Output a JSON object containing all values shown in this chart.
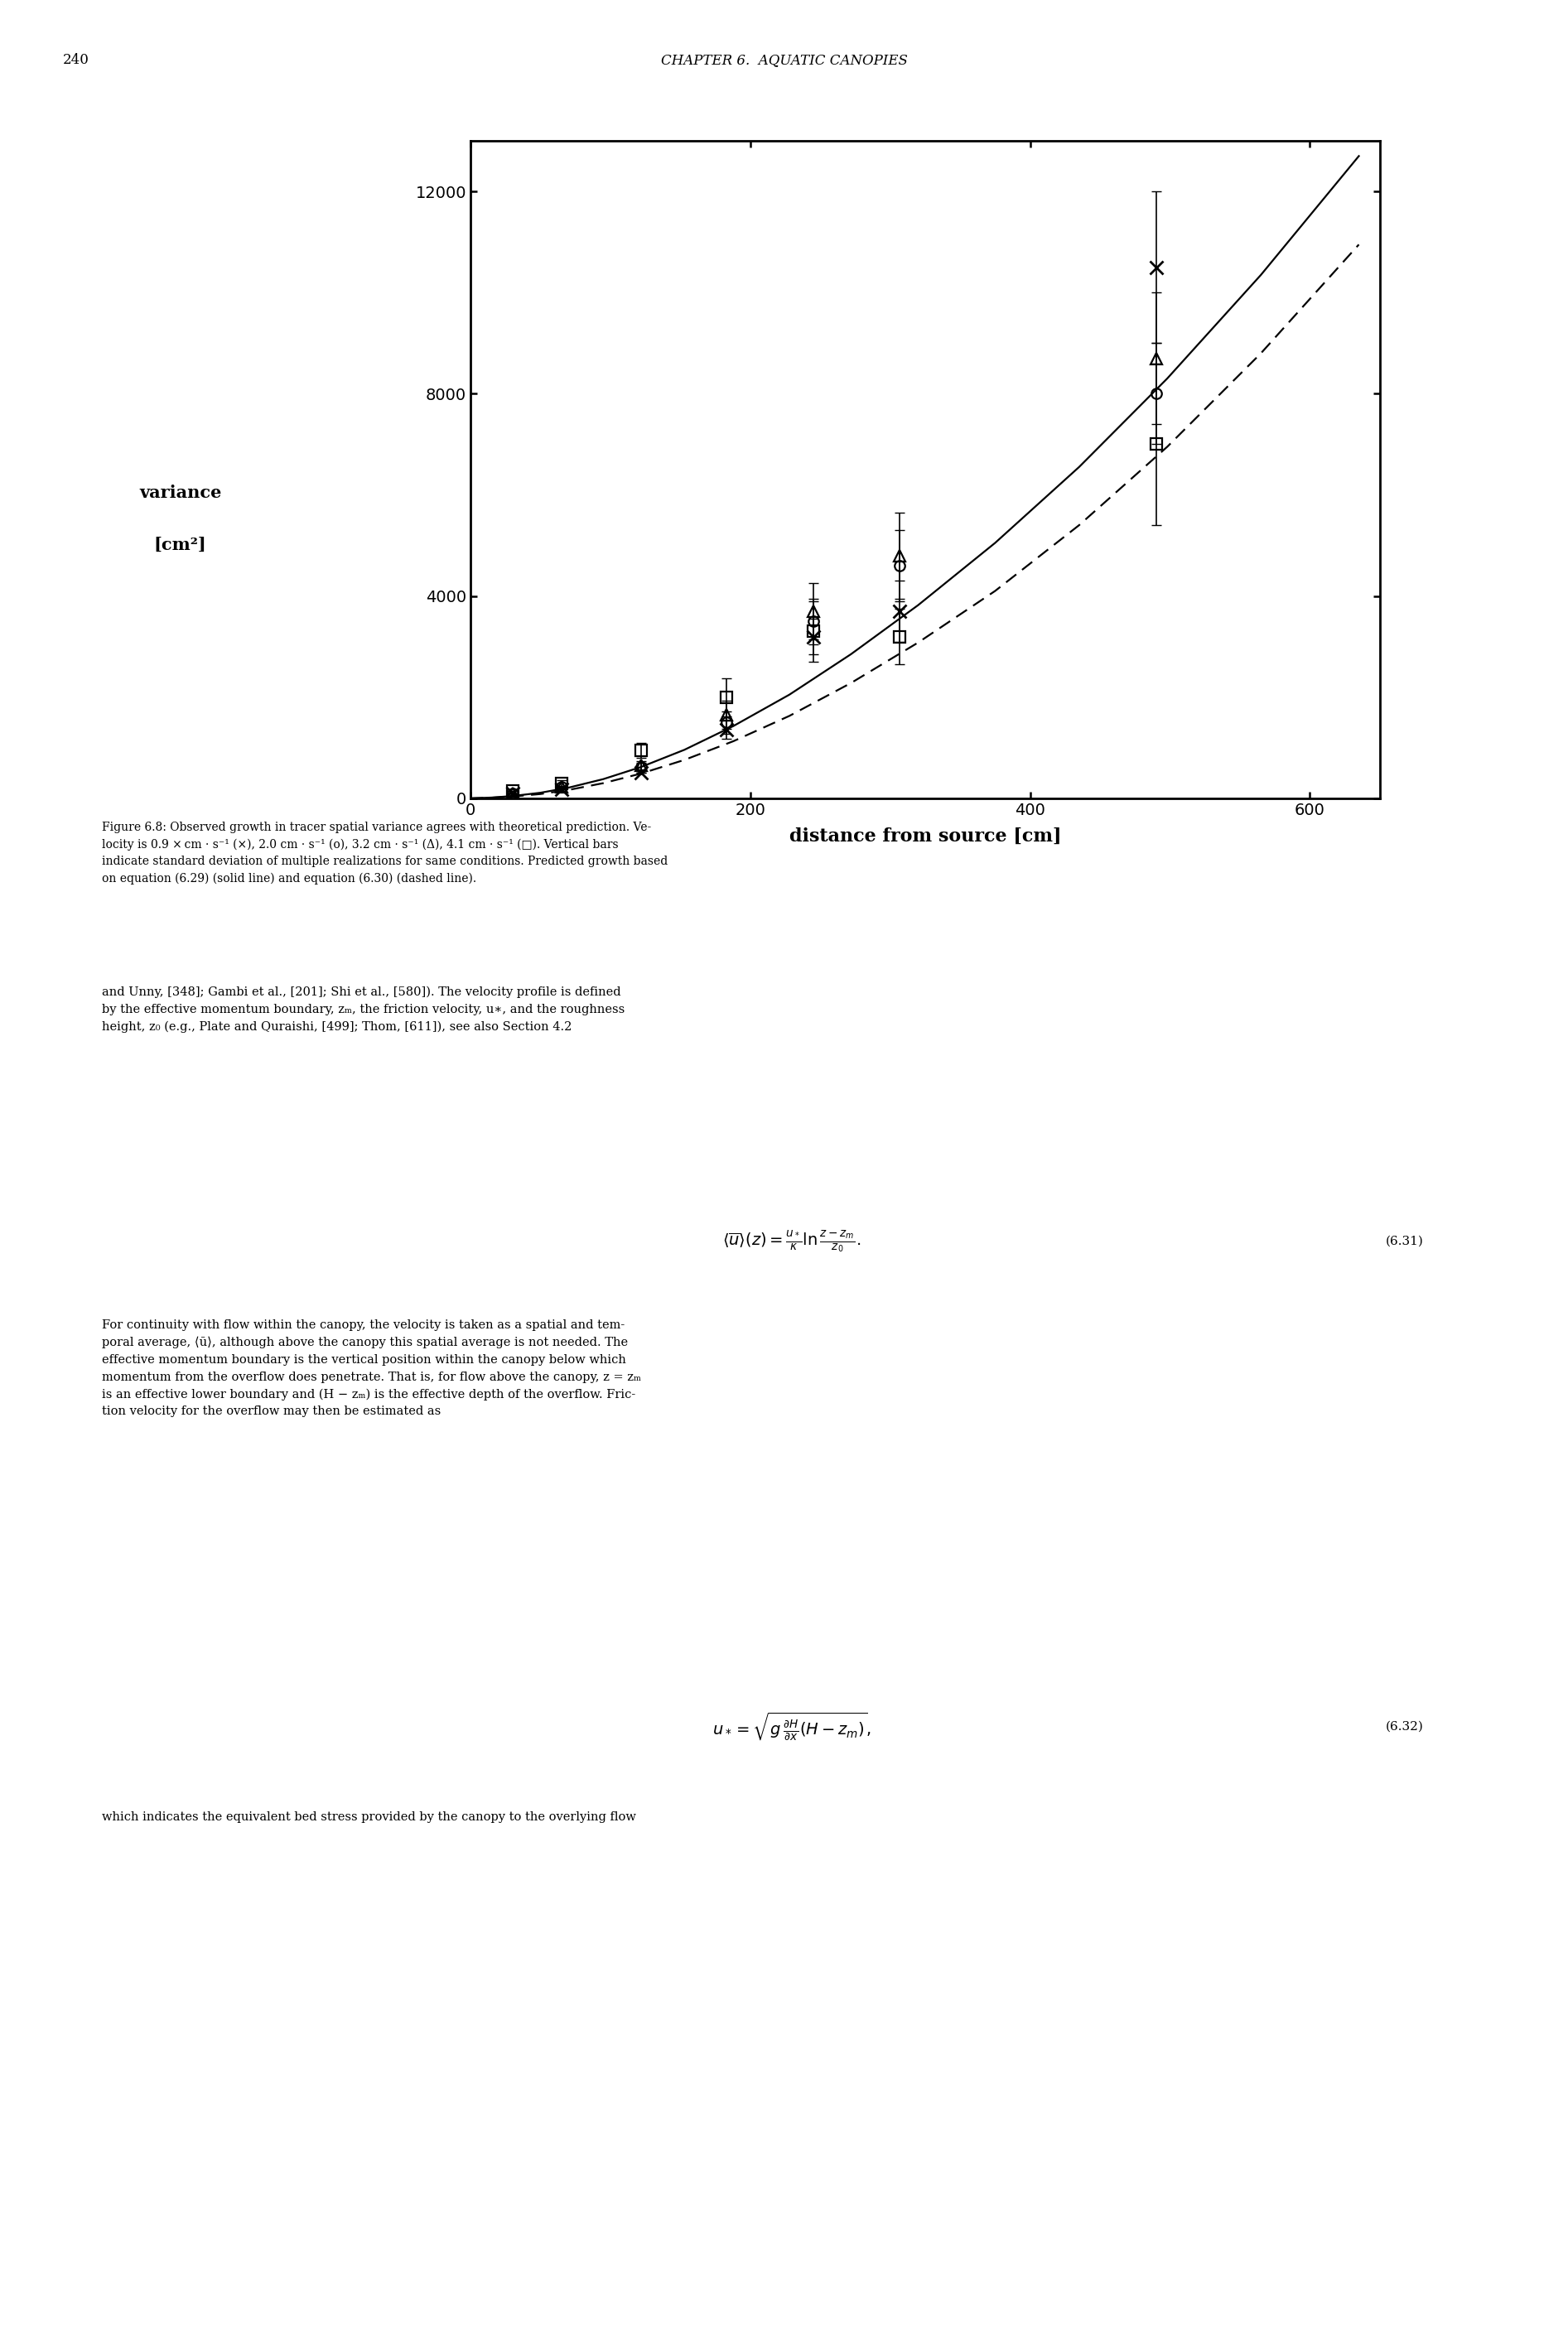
{
  "page_number": "240",
  "page_header": "CHAPTER 6.  AQUATIC CANOPIES",
  "xlabel": "distance from source [cm]",
  "xlim": [
    0,
    650
  ],
  "ylim": [
    0,
    13000
  ],
  "xticks": [
    0,
    200,
    400,
    600
  ],
  "yticks": [
    0,
    4000,
    8000,
    12000
  ],
  "series_x_x": [
    30,
    65,
    122,
    183,
    245,
    307,
    490
  ],
  "series_x_y": [
    100,
    180,
    500,
    1350,
    3200,
    3700,
    10500
  ],
  "series_x_yerr": [
    0,
    0,
    0,
    180,
    350,
    600,
    1500
  ],
  "series_o_x": [
    30,
    65,
    122,
    183,
    245,
    307,
    490
  ],
  "series_o_y": [
    100,
    220,
    620,
    1500,
    3500,
    4600,
    8000
  ],
  "series_o_yerr": [
    0,
    0,
    80,
    220,
    450,
    700,
    1000
  ],
  "series_tri_x": [
    30,
    65,
    122,
    183,
    245,
    307,
    490
  ],
  "series_tri_y": [
    100,
    220,
    650,
    1650,
    3700,
    4800,
    8700
  ],
  "series_tri_yerr": [
    0,
    0,
    80,
    280,
    550,
    850,
    1300
  ],
  "series_sq_x": [
    30,
    65,
    122,
    183,
    245,
    307,
    490
  ],
  "series_sq_y": [
    150,
    300,
    950,
    2000,
    3300,
    3200,
    7000
  ],
  "series_sq_yerr": [
    0,
    60,
    150,
    380,
    600,
    550,
    1600
  ],
  "solid_x": [
    0,
    15,
    30,
    50,
    70,
    95,
    122,
    153,
    188,
    228,
    272,
    320,
    375,
    435,
    498,
    565,
    635
  ],
  "solid_y": [
    0,
    15,
    45,
    110,
    210,
    380,
    620,
    960,
    1430,
    2050,
    2850,
    3820,
    5050,
    6550,
    8300,
    10350,
    12700
  ],
  "dashed_x": [
    0,
    15,
    30,
    50,
    70,
    95,
    122,
    153,
    188,
    228,
    272,
    320,
    375,
    435,
    498,
    565,
    635
  ],
  "dashed_y": [
    0,
    12,
    35,
    85,
    165,
    300,
    490,
    760,
    1130,
    1630,
    2280,
    3080,
    4100,
    5400,
    6950,
    8800,
    10950
  ],
  "tick_fontsize": 14,
  "label_fontsize": 16,
  "body_fontsize": 10.5,
  "caption_fontsize": 10,
  "eq_fontsize": 14
}
